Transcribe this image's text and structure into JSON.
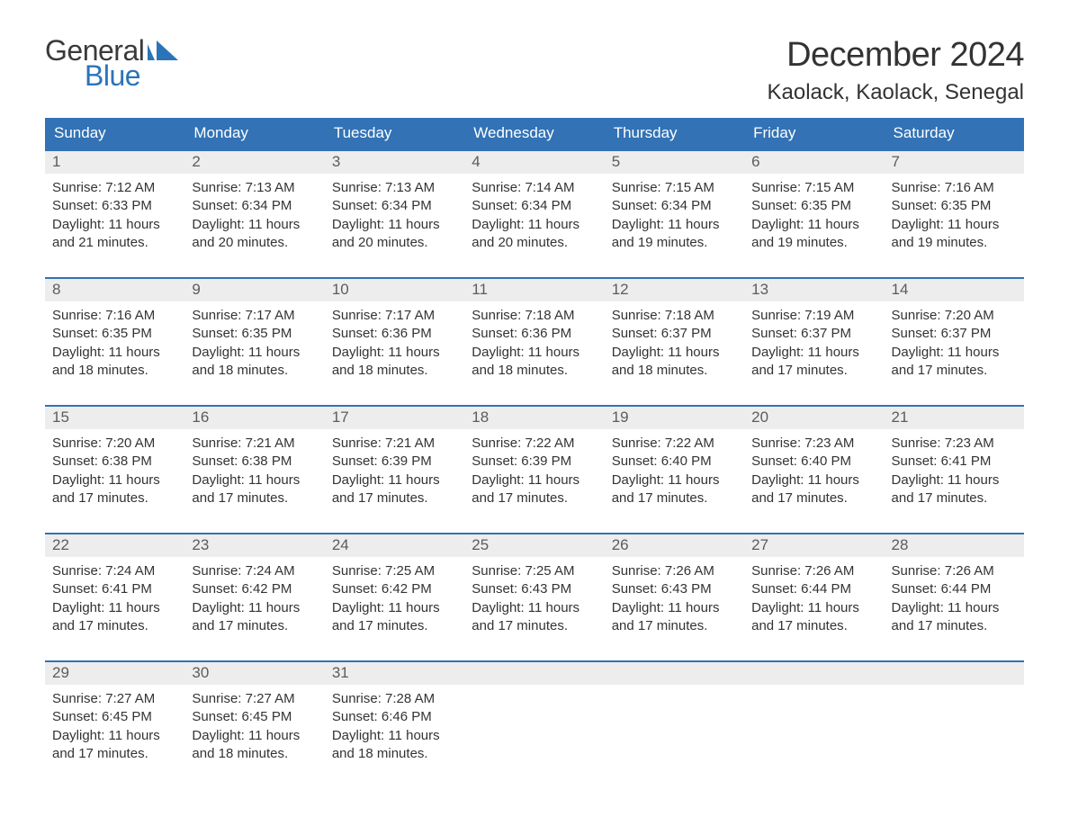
{
  "logo": {
    "word_general": "General",
    "word_blue": "Blue",
    "icon_color": "#2b74b8",
    "text_dark": "#3a3a3a"
  },
  "title": {
    "month": "December 2024",
    "location": "Kaolack, Kaolack, Senegal"
  },
  "colors": {
    "header_bg": "#3272b5",
    "header_text": "#ffffff",
    "week_border": "#3272b5",
    "daynum_bg": "#ededed",
    "daynum_text": "#5c5c5c",
    "body_text": "#333333",
    "page_bg": "#ffffff"
  },
  "typography": {
    "month_title_fontsize": 38,
    "location_fontsize": 24,
    "weekday_fontsize": 17,
    "daynum_fontsize": 17,
    "body_fontsize": 15,
    "font_family": "Arial"
  },
  "weekdays": [
    "Sunday",
    "Monday",
    "Tuesday",
    "Wednesday",
    "Thursday",
    "Friday",
    "Saturday"
  ],
  "labels": {
    "sunrise": "Sunrise:",
    "sunset": "Sunset:",
    "daylight": "Daylight:"
  },
  "days": [
    {
      "n": 1,
      "sunrise": "7:12 AM",
      "sunset": "6:33 PM",
      "daylight": "11 hours and 21 minutes."
    },
    {
      "n": 2,
      "sunrise": "7:13 AM",
      "sunset": "6:34 PM",
      "daylight": "11 hours and 20 minutes."
    },
    {
      "n": 3,
      "sunrise": "7:13 AM",
      "sunset": "6:34 PM",
      "daylight": "11 hours and 20 minutes."
    },
    {
      "n": 4,
      "sunrise": "7:14 AM",
      "sunset": "6:34 PM",
      "daylight": "11 hours and 20 minutes."
    },
    {
      "n": 5,
      "sunrise": "7:15 AM",
      "sunset": "6:34 PM",
      "daylight": "11 hours and 19 minutes."
    },
    {
      "n": 6,
      "sunrise": "7:15 AM",
      "sunset": "6:35 PM",
      "daylight": "11 hours and 19 minutes."
    },
    {
      "n": 7,
      "sunrise": "7:16 AM",
      "sunset": "6:35 PM",
      "daylight": "11 hours and 19 minutes."
    },
    {
      "n": 8,
      "sunrise": "7:16 AM",
      "sunset": "6:35 PM",
      "daylight": "11 hours and 18 minutes."
    },
    {
      "n": 9,
      "sunrise": "7:17 AM",
      "sunset": "6:35 PM",
      "daylight": "11 hours and 18 minutes."
    },
    {
      "n": 10,
      "sunrise": "7:17 AM",
      "sunset": "6:36 PM",
      "daylight": "11 hours and 18 minutes."
    },
    {
      "n": 11,
      "sunrise": "7:18 AM",
      "sunset": "6:36 PM",
      "daylight": "11 hours and 18 minutes."
    },
    {
      "n": 12,
      "sunrise": "7:18 AM",
      "sunset": "6:37 PM",
      "daylight": "11 hours and 18 minutes."
    },
    {
      "n": 13,
      "sunrise": "7:19 AM",
      "sunset": "6:37 PM",
      "daylight": "11 hours and 17 minutes."
    },
    {
      "n": 14,
      "sunrise": "7:20 AM",
      "sunset": "6:37 PM",
      "daylight": "11 hours and 17 minutes."
    },
    {
      "n": 15,
      "sunrise": "7:20 AM",
      "sunset": "6:38 PM",
      "daylight": "11 hours and 17 minutes."
    },
    {
      "n": 16,
      "sunrise": "7:21 AM",
      "sunset": "6:38 PM",
      "daylight": "11 hours and 17 minutes."
    },
    {
      "n": 17,
      "sunrise": "7:21 AM",
      "sunset": "6:39 PM",
      "daylight": "11 hours and 17 minutes."
    },
    {
      "n": 18,
      "sunrise": "7:22 AM",
      "sunset": "6:39 PM",
      "daylight": "11 hours and 17 minutes."
    },
    {
      "n": 19,
      "sunrise": "7:22 AM",
      "sunset": "6:40 PM",
      "daylight": "11 hours and 17 minutes."
    },
    {
      "n": 20,
      "sunrise": "7:23 AM",
      "sunset": "6:40 PM",
      "daylight": "11 hours and 17 minutes."
    },
    {
      "n": 21,
      "sunrise": "7:23 AM",
      "sunset": "6:41 PM",
      "daylight": "11 hours and 17 minutes."
    },
    {
      "n": 22,
      "sunrise": "7:24 AM",
      "sunset": "6:41 PM",
      "daylight": "11 hours and 17 minutes."
    },
    {
      "n": 23,
      "sunrise": "7:24 AM",
      "sunset": "6:42 PM",
      "daylight": "11 hours and 17 minutes."
    },
    {
      "n": 24,
      "sunrise": "7:25 AM",
      "sunset": "6:42 PM",
      "daylight": "11 hours and 17 minutes."
    },
    {
      "n": 25,
      "sunrise": "7:25 AM",
      "sunset": "6:43 PM",
      "daylight": "11 hours and 17 minutes."
    },
    {
      "n": 26,
      "sunrise": "7:26 AM",
      "sunset": "6:43 PM",
      "daylight": "11 hours and 17 minutes."
    },
    {
      "n": 27,
      "sunrise": "7:26 AM",
      "sunset": "6:44 PM",
      "daylight": "11 hours and 17 minutes."
    },
    {
      "n": 28,
      "sunrise": "7:26 AM",
      "sunset": "6:44 PM",
      "daylight": "11 hours and 17 minutes."
    },
    {
      "n": 29,
      "sunrise": "7:27 AM",
      "sunset": "6:45 PM",
      "daylight": "11 hours and 17 minutes."
    },
    {
      "n": 30,
      "sunrise": "7:27 AM",
      "sunset": "6:45 PM",
      "daylight": "11 hours and 18 minutes."
    },
    {
      "n": 31,
      "sunrise": "7:28 AM",
      "sunset": "6:46 PM",
      "daylight": "11 hours and 18 minutes."
    }
  ],
  "layout": {
    "first_day_column": 0,
    "days_in_month": 31,
    "columns": 7
  }
}
